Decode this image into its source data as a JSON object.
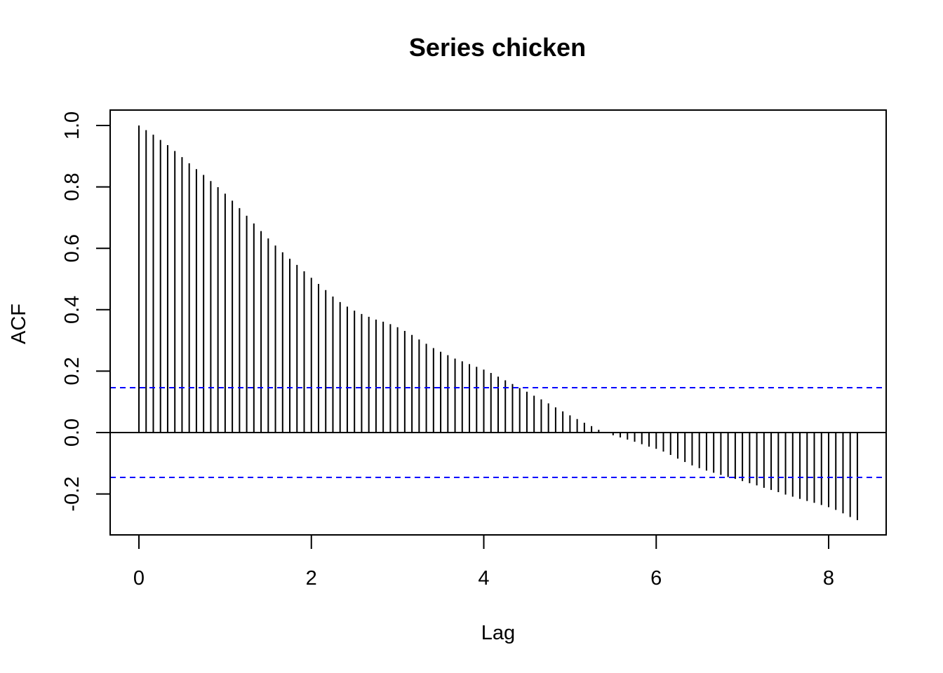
{
  "chart_data": {
    "type": "bar",
    "title": "Series  chicken",
    "xlabel": "Lag",
    "ylabel": "ACF",
    "xlim": [
      -0.33,
      8.67
    ],
    "ylim": [
      -0.33,
      1.05
    ],
    "xticks": [
      "0",
      "2",
      "4",
      "6",
      "8"
    ],
    "yticks": [
      "-0.2",
      "0.0",
      "0.2",
      "0.4",
      "0.6",
      "0.8",
      "1.0"
    ],
    "ci": 0.146,
    "colors": {
      "bars": "#000000",
      "ci": "#0000ff",
      "zero": "#000000"
    },
    "x": [
      0.0,
      0.0833,
      0.1667,
      0.25,
      0.3333,
      0.4167,
      0.5,
      0.5833,
      0.6667,
      0.75,
      0.8333,
      0.9167,
      1.0,
      1.0833,
      1.1667,
      1.25,
      1.3333,
      1.4167,
      1.5,
      1.5833,
      1.6667,
      1.75,
      1.8333,
      1.9167,
      2.0,
      2.0833,
      2.1667,
      2.25,
      2.3333,
      2.4167,
      2.5,
      2.5833,
      2.6667,
      2.75,
      2.8333,
      2.9167,
      3.0,
      3.0833,
      3.1667,
      3.25,
      3.3333,
      3.4167,
      3.5,
      3.5833,
      3.6667,
      3.75,
      3.8333,
      3.9167,
      4.0,
      4.0833,
      4.1667,
      4.25,
      4.3333,
      4.4167,
      4.5,
      4.5833,
      4.6667,
      4.75,
      4.8333,
      4.9167,
      5.0,
      5.0833,
      5.1667,
      5.25,
      5.3333,
      5.4167,
      5.5,
      5.5833,
      5.6667,
      5.75,
      5.8333,
      5.9167,
      6.0,
      6.0833,
      6.1667,
      6.25,
      6.3333,
      6.4167,
      6.5,
      6.5833,
      6.6667,
      6.75,
      6.8333,
      6.9167,
      7.0,
      7.0833,
      7.1667,
      7.25,
      7.3333,
      7.4167,
      7.5,
      7.5833,
      7.6667,
      7.75,
      7.8333,
      7.9167,
      8.0,
      8.0833,
      8.1667,
      8.25,
      8.3333
    ],
    "values": [
      1.0,
      0.985,
      0.97,
      0.953,
      0.936,
      0.917,
      0.897,
      0.877,
      0.858,
      0.839,
      0.819,
      0.799,
      0.778,
      0.755,
      0.731,
      0.706,
      0.681,
      0.656,
      0.632,
      0.609,
      0.587,
      0.566,
      0.546,
      0.525,
      0.504,
      0.484,
      0.464,
      0.443,
      0.425,
      0.41,
      0.397,
      0.386,
      0.377,
      0.368,
      0.361,
      0.353,
      0.343,
      0.331,
      0.318,
      0.303,
      0.289,
      0.275,
      0.263,
      0.252,
      0.241,
      0.232,
      0.223,
      0.214,
      0.205,
      0.194,
      0.182,
      0.17,
      0.158,
      0.145,
      0.133,
      0.12,
      0.108,
      0.095,
      0.082,
      0.069,
      0.056,
      0.044,
      0.032,
      0.021,
      0.009,
      -0.002,
      -0.009,
      -0.016,
      -0.023,
      -0.03,
      -0.038,
      -0.046,
      -0.053,
      -0.062,
      -0.073,
      -0.085,
      -0.096,
      -0.107,
      -0.116,
      -0.124,
      -0.131,
      -0.138,
      -0.145,
      -0.151,
      -0.158,
      -0.165,
      -0.172,
      -0.18,
      -0.187,
      -0.194,
      -0.202,
      -0.209,
      -0.216,
      -0.223,
      -0.229,
      -0.236,
      -0.243,
      -0.252,
      -0.263,
      -0.275,
      -0.285
    ]
  }
}
